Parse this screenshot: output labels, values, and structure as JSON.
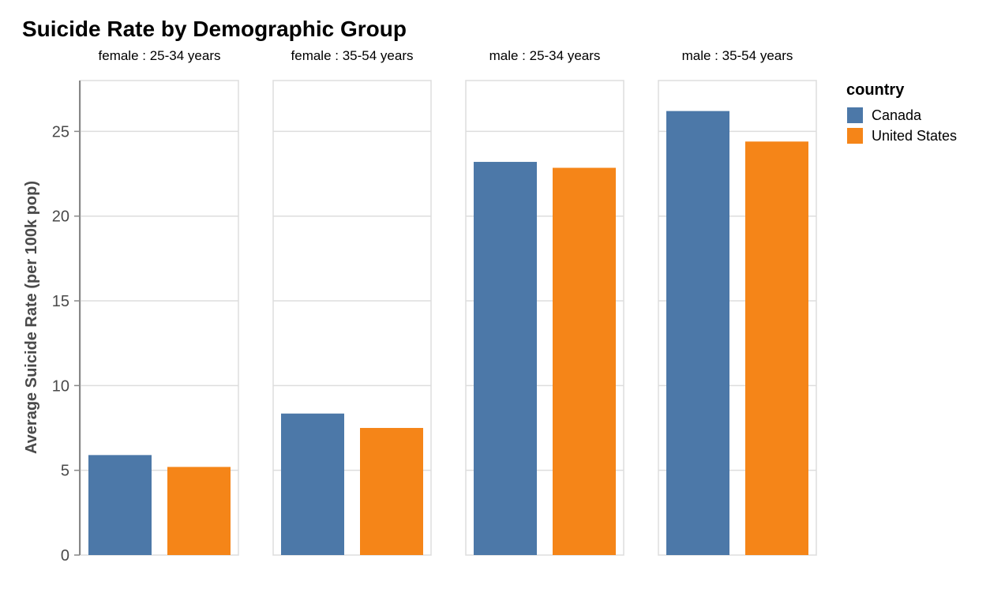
{
  "chart_data": {
    "type": "bar",
    "title": "Suicide Rate by Demographic Group",
    "ylabel": "Average Suicide Rate (per 100k pop)",
    "ylim": [
      0,
      28
    ],
    "yticks": [
      0,
      5,
      10,
      15,
      20,
      25
    ],
    "grid": true,
    "facets": [
      "female : 25-34 years",
      "female : 35-54 years",
      "male : 25-34 years",
      "male : 35-54 years"
    ],
    "legend": {
      "title": "country",
      "placement": "right"
    },
    "series": [
      {
        "name": "Canada",
        "color": "#4c78a8",
        "values": [
          5.9,
          8.35,
          23.2,
          26.2
        ]
      },
      {
        "name": "United States",
        "color": "#f58518",
        "values": [
          5.2,
          7.5,
          22.85,
          24.4
        ]
      }
    ]
  }
}
